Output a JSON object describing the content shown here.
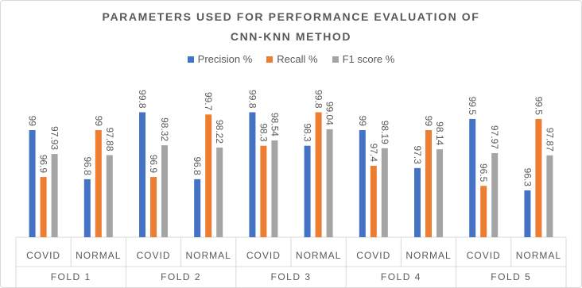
{
  "chart_data": {
    "type": "bar",
    "title": "PARAMETERS USED FOR PERFORMANCE EVALUATION OF CNN-KNN METHOD",
    "categories": [
      "COVID",
      "NORMAL",
      "COVID",
      "NORMAL",
      "COVID",
      "NORMAL",
      "COVID",
      "NORMAL",
      "COVID",
      "NORMAL"
    ],
    "category_groups": [
      "FOLD 1",
      "FOLD 2",
      "FOLD 3",
      "FOLD 4",
      "FOLD 5"
    ],
    "series": [
      {
        "name": "Precision %",
        "color": "#4472c4",
        "values": [
          99,
          96.8,
          99.8,
          96.8,
          99.8,
          98.3,
          99,
          97.3,
          99.5,
          96.3
        ]
      },
      {
        "name": "Recall %",
        "color": "#ed7d31",
        "values": [
          96.9,
          99,
          96.9,
          99.7,
          98.3,
          99.8,
          97.4,
          99,
          96.5,
          99.5
        ]
      },
      {
        "name": "F1 score %",
        "color": "#a5a5a5",
        "values": [
          97.93,
          97.88,
          98.32,
          98.22,
          98.54,
          99.04,
          98.19,
          98.14,
          97.97,
          97.87
        ]
      }
    ],
    "ylim": [
      94.2,
      100.6
    ],
    "legend": "top"
  }
}
